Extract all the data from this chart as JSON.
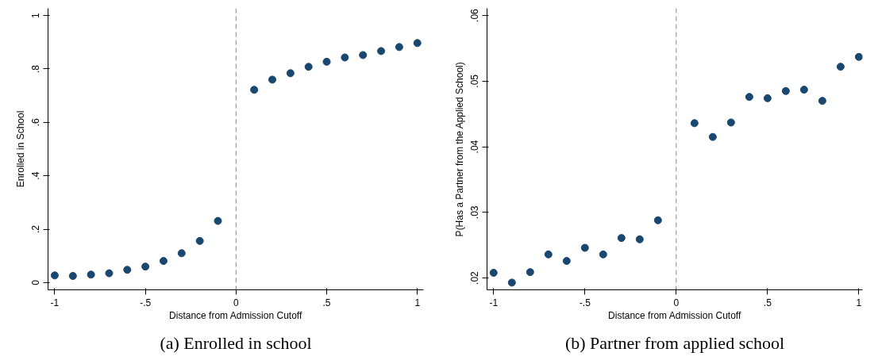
{
  "chart_data": [
    {
      "type": "scatter",
      "title": "(a) Enrolled in school",
      "xlabel": "Distance from Admission Cutoff",
      "ylabel": "Enrolled in School",
      "x": [
        -1,
        -0.9,
        -0.8,
        -0.7,
        -0.6,
        -0.5,
        -0.4,
        -0.3,
        -0.2,
        -0.1,
        0.1,
        0.2,
        0.3,
        0.4,
        0.5,
        0.6,
        0.7,
        0.8,
        0.9,
        1
      ],
      "series": [
        {
          "color": "#1a476f",
          "values": [
            0.027,
            0.025,
            0.03,
            0.035,
            0.048,
            0.06,
            0.081,
            0.11,
            0.156,
            0.231,
            0.722,
            0.76,
            0.784,
            0.808,
            0.827,
            0.843,
            0.852,
            0.867,
            0.882,
            0.897
          ]
        }
      ],
      "xlim": [
        -1.037,
        1.034
      ],
      "ylim": [
        -0.027,
        1.027
      ],
      "xticks": [
        {
          "value": -1,
          "label": "-1"
        },
        {
          "value": -0.5,
          "label": "-.5"
        },
        {
          "value": 0,
          "label": "0"
        },
        {
          "value": 0.5,
          "label": ".5"
        },
        {
          "value": 1,
          "label": "1"
        }
      ],
      "yticks": [
        {
          "value": 0,
          "label": "0"
        },
        {
          "value": 0.2,
          "label": ".2"
        },
        {
          "value": 0.4,
          "label": ".4"
        },
        {
          "value": 0.6,
          "label": ".6"
        },
        {
          "value": 0.8,
          "label": ".8"
        },
        {
          "value": 1,
          "label": "1"
        }
      ],
      "ref_lines": [
        {
          "axis": "x",
          "value": 0,
          "color": "#888888",
          "line_style": "dashed"
        }
      ],
      "grid": false,
      "marker": "circle"
    },
    {
      "type": "scatter",
      "title": "(b) Partner from applied school",
      "xlabel": "Distance from Admission Cutoff",
      "ylabel": "P(Has a Partner from the Applied School)",
      "x": [
        -1,
        -0.9,
        -0.8,
        -0.7,
        -0.6,
        -0.5,
        -0.4,
        -0.3,
        -0.2,
        -0.1,
        0.1,
        0.2,
        0.3,
        0.4,
        0.5,
        0.6,
        0.7,
        0.8,
        0.9,
        1
      ],
      "series": [
        {
          "color": "#1a476f",
          "values": [
            0.0208,
            0.0193,
            0.0209,
            0.0236,
            0.0226,
            0.0246,
            0.0236,
            0.0261,
            0.0259,
            0.0288,
            0.0436,
            0.0415,
            0.0437,
            0.0476,
            0.0474,
            0.0485,
            0.0487,
            0.047,
            0.0522,
            0.0537
          ]
        }
      ],
      "xlim": [
        -1.036,
        1.02
      ],
      "ylim": [
        0.0182,
        0.0611
      ],
      "xticks": [
        {
          "value": -1,
          "label": "-1"
        },
        {
          "value": -0.5,
          "label": "-.5"
        },
        {
          "value": 0,
          "label": "0"
        },
        {
          "value": 0.5,
          "label": ".5"
        },
        {
          "value": 1,
          "label": "1"
        }
      ],
      "yticks": [
        {
          "value": 0.02,
          "label": ".02"
        },
        {
          "value": 0.03,
          "label": ".03"
        },
        {
          "value": 0.04,
          "label": ".04"
        },
        {
          "value": 0.05,
          "label": ".05"
        },
        {
          "value": 0.06,
          "label": ".06"
        }
      ],
      "ref_lines": [
        {
          "axis": "x",
          "value": 0,
          "color": "#888888",
          "line_style": "dashed"
        }
      ],
      "grid": false,
      "marker": "circle"
    }
  ]
}
